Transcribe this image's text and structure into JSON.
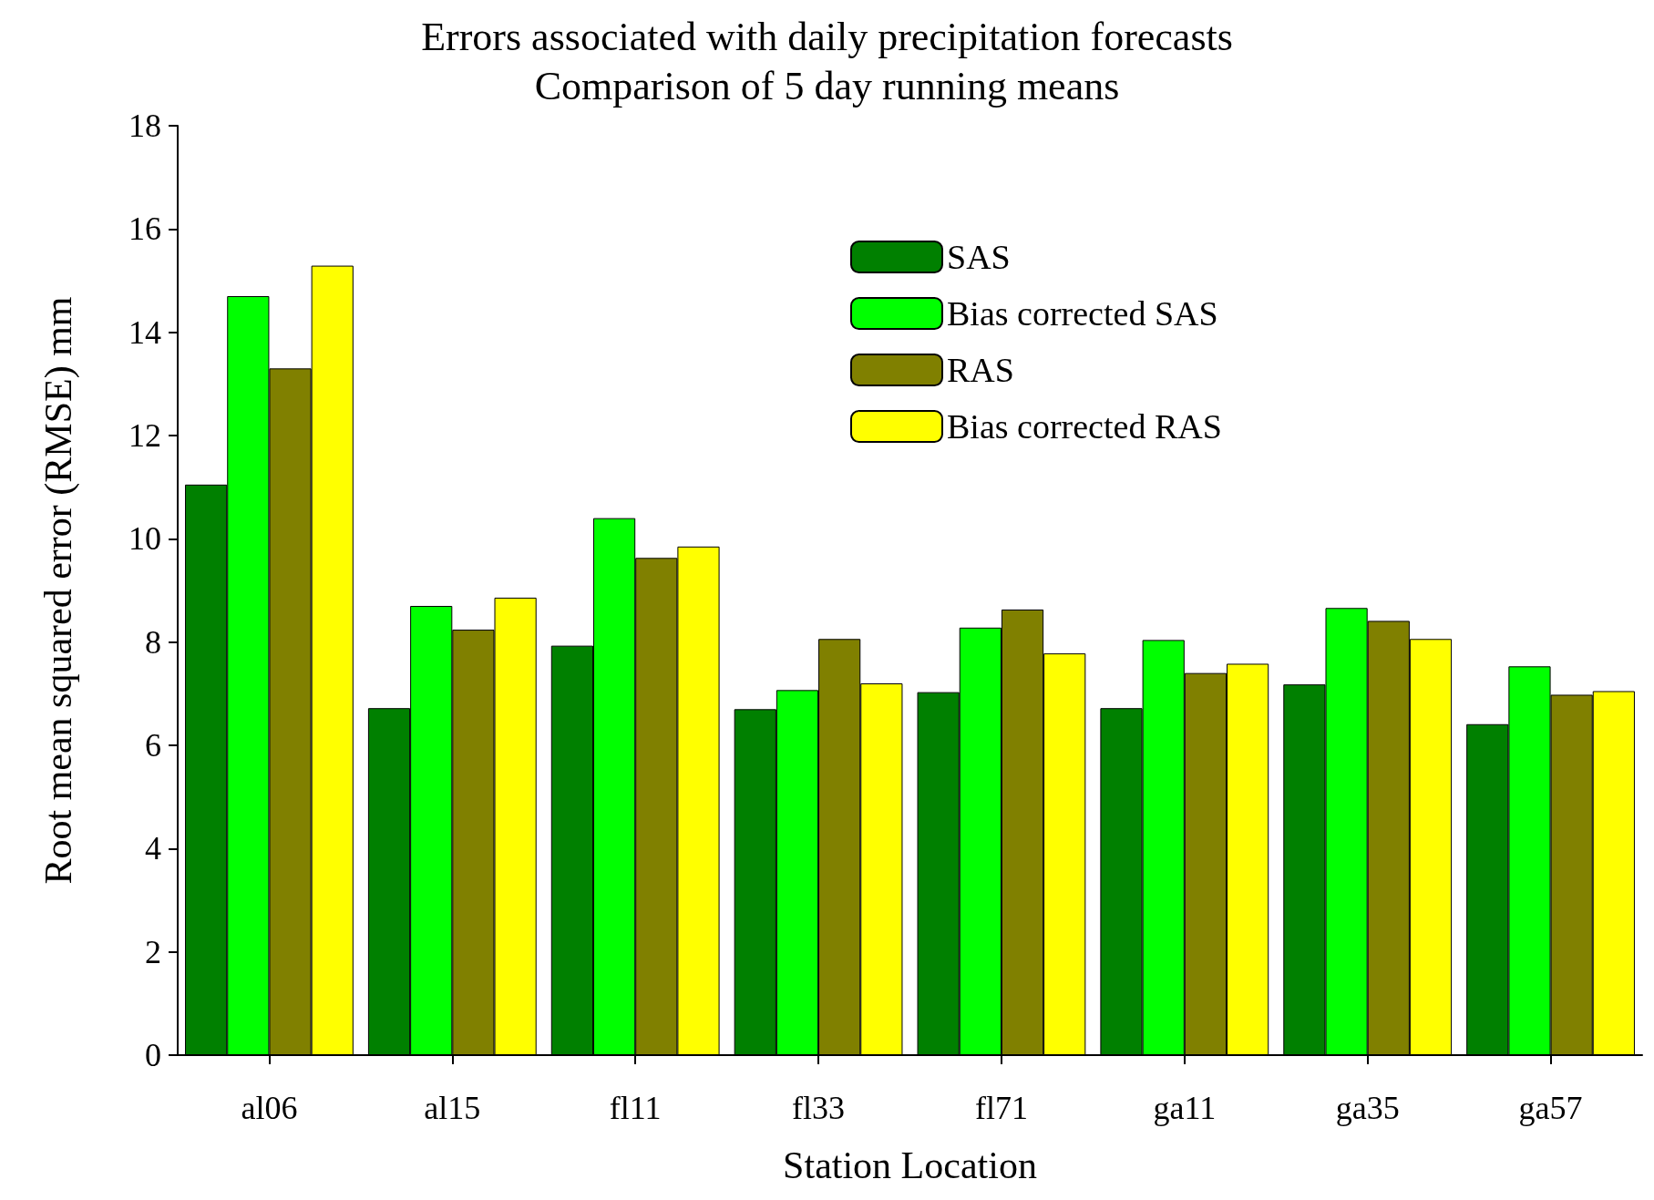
{
  "chart_data": {
    "type": "bar",
    "title": "Errors associated with daily precipitation forecasts",
    "subtitle": "Comparison of 5 day running means",
    "xlabel": "Station Location",
    "ylabel": "Root mean squared error (RMSE) mm",
    "categories": [
      "al06",
      "al15",
      "fl11",
      "fl33",
      "fl71",
      "ga11",
      "ga35",
      "ga57"
    ],
    "series": [
      {
        "name": "SAS",
        "color": "#008000",
        "values": [
          11.05,
          6.72,
          7.93,
          6.7,
          7.03,
          6.72,
          7.18,
          6.41
        ]
      },
      {
        "name": "Bias corrected SAS",
        "color": "#00ff00",
        "values": [
          14.7,
          8.7,
          10.4,
          7.07,
          8.28,
          8.04,
          8.66,
          7.53
        ]
      },
      {
        "name": "RAS",
        "color": "#808000",
        "values": [
          13.3,
          8.24,
          9.63,
          8.06,
          8.63,
          7.4,
          8.41,
          6.98
        ]
      },
      {
        "name": "Bias corrected RAS",
        "color": "#ffff00",
        "values": [
          15.29,
          8.86,
          9.85,
          7.2,
          7.78,
          7.58,
          8.06,
          7.05
        ]
      }
    ],
    "ylim": [
      0,
      18
    ],
    "yticks": [
      0,
      2,
      4,
      6,
      8,
      10,
      12,
      14,
      16,
      18
    ],
    "grid": false,
    "legend": "top right"
  }
}
